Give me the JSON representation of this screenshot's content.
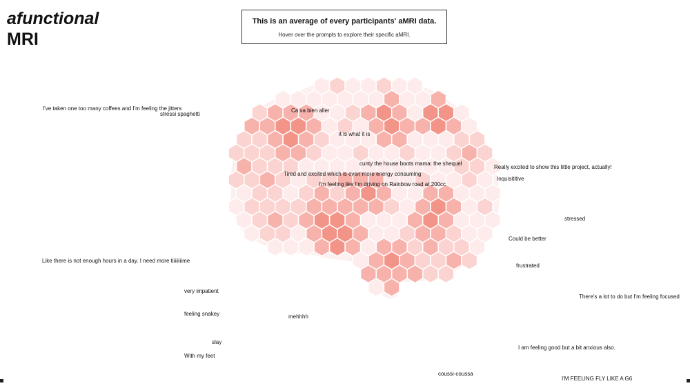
{
  "title": {
    "line1": "afunctional",
    "line2": "MRI"
  },
  "info": {
    "heading": "This is an average of every participants' aMRI data.",
    "subtext": "Hover over the prompts to explore their specific aMRI."
  },
  "colors": {
    "cell_faint": "#fdeceb",
    "cell_light": "#fbd3d0",
    "cell_medium": "#f8b2ac",
    "cell_strong": "#f39488",
    "brain_fill": "#fdf1f0"
  },
  "prompts": [
    "I've taken one too many coffees and I'm feeling the jitters",
    "stressi spaghetti",
    "Ca va bien aller",
    "it is what it is",
    "cunty the house boots mama: the shequel",
    "Tired and excited which is even more energy consuming",
    "I'm feeling like I'm driving on Rainbow road at 200cc",
    "Really excited to show this little project, actually!",
    "Inquisititive",
    "stressed",
    "Could be better",
    "Like there is not enough hours in a day. I need more tiiiiiiiime",
    "frustrated",
    "very impatient",
    "There's a lot to do but I'm feeling focused",
    "feeling snakey",
    "mehhhh",
    "slay",
    "I am feeling good but a bit anxious also.",
    "With my feet",
    "coussi-coussa",
    "I'M FEELING FLY LIKE A G6"
  ]
}
